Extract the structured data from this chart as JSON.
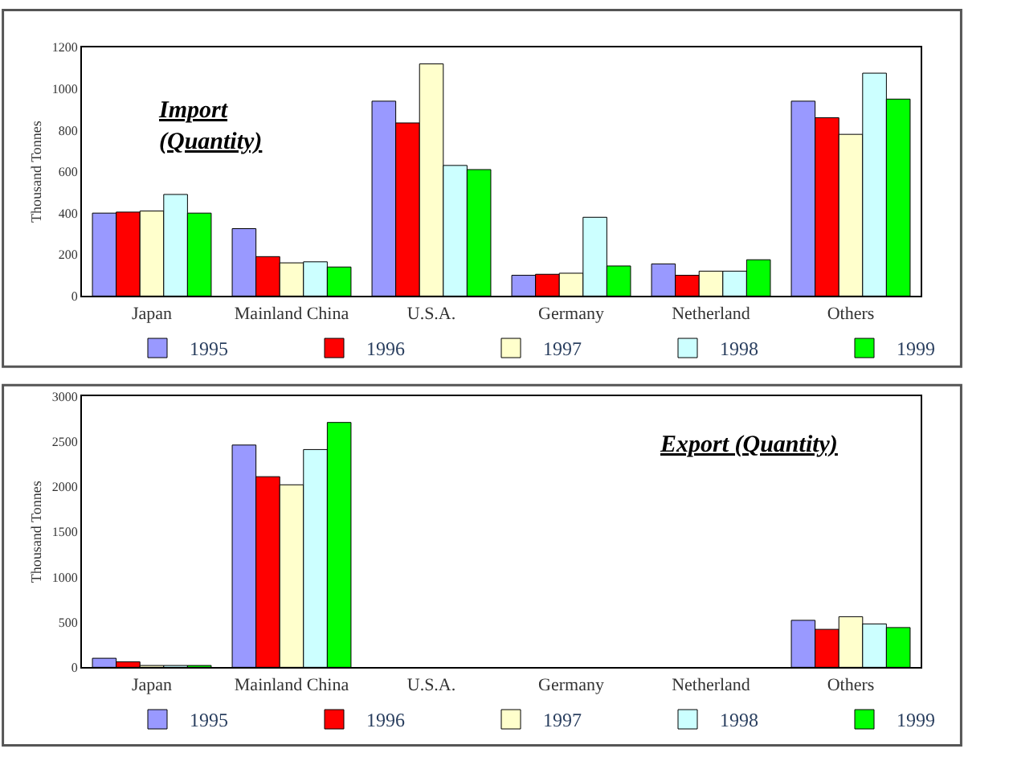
{
  "chart_data": [
    {
      "type": "bar",
      "title": "Import\n(Quantity)",
      "ylabel": "Thousand Tonnes",
      "categories": [
        "Japan",
        "Mainland China",
        "U.S.A.",
        "Germany",
        "Netherland",
        "Others"
      ],
      "series": [
        {
          "name": "1995",
          "color": "#9999ff",
          "values": [
            400,
            325,
            940,
            100,
            155,
            940
          ]
        },
        {
          "name": "1996",
          "color": "#ff0000",
          "values": [
            405,
            190,
            835,
            105,
            100,
            860
          ]
        },
        {
          "name": "1997",
          "color": "#ffffcc",
          "values": [
            410,
            160,
            1120,
            110,
            120,
            780
          ]
        },
        {
          "name": "1998",
          "color": "#ccffff",
          "values": [
            490,
            165,
            630,
            380,
            120,
            1075
          ]
        },
        {
          "name": "1999",
          "color": "#00ff00",
          "values": [
            400,
            140,
            610,
            145,
            175,
            950
          ]
        }
      ],
      "ylim": [
        0,
        1200
      ],
      "yticks": [
        0,
        200,
        400,
        600,
        800,
        1000,
        1200
      ],
      "grid": false,
      "legend": "bottom"
    },
    {
      "type": "bar",
      "title": "Export (Quantity)",
      "ylabel": "Thousand Tonnes",
      "categories": [
        "Japan",
        "Mainland China",
        "U.S.A.",
        "Germany",
        "Netherland",
        "Others"
      ],
      "series": [
        {
          "name": "1995",
          "color": "#9999ff",
          "values": [
            100,
            2460,
            null,
            null,
            null,
            520
          ]
        },
        {
          "name": "1996",
          "color": "#ff0000",
          "values": [
            60,
            2110,
            null,
            null,
            null,
            420
          ]
        },
        {
          "name": "1997",
          "color": "#ffffcc",
          "values": [
            20,
            2020,
            null,
            null,
            null,
            560
          ]
        },
        {
          "name": "1998",
          "color": "#ccffff",
          "values": [
            20,
            2410,
            null,
            null,
            null,
            480
          ]
        },
        {
          "name": "1999",
          "color": "#00ff00",
          "values": [
            20,
            2710,
            null,
            null,
            null,
            440
          ]
        }
      ],
      "ylim": [
        0,
        3000
      ],
      "yticks": [
        0,
        500,
        1000,
        1500,
        2000,
        2500,
        3000
      ],
      "grid": false,
      "legend": "bottom"
    }
  ]
}
